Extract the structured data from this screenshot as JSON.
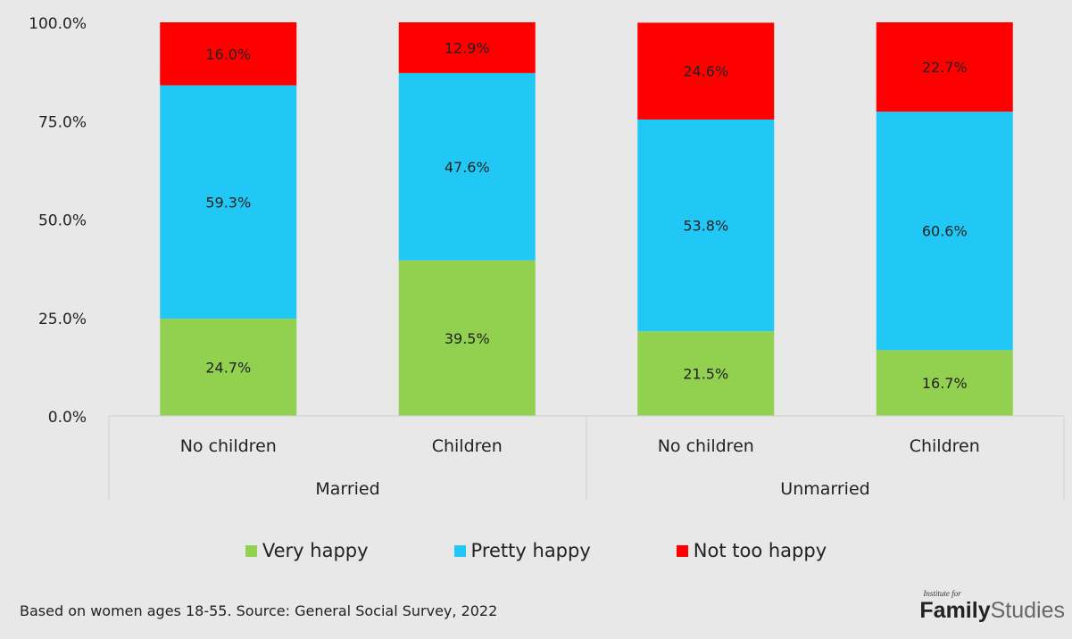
{
  "chart_data": {
    "type": "bar",
    "stacked": true,
    "categories": [
      "No children",
      "Children",
      "No children",
      "Children"
    ],
    "groups": [
      {
        "label": "Married",
        "categories": [
          "No children",
          "Children"
        ]
      },
      {
        "label": "Unmarried",
        "categories": [
          "No children",
          "Children"
        ]
      }
    ],
    "series": [
      {
        "name": "Very happy",
        "values": [
          24.7,
          39.5,
          21.5,
          16.7
        ],
        "labels": [
          "24.7%",
          "39.5%",
          "21.5%",
          "16.7%"
        ],
        "color": "#92d050"
      },
      {
        "name": "Pretty happy",
        "values": [
          59.3,
          47.6,
          53.8,
          60.6
        ],
        "labels": [
          "59.3%",
          "47.6%",
          "53.8%",
          "60.6%"
        ],
        "color": "#22c8f5"
      },
      {
        "name": "Not too happy",
        "values": [
          16.0,
          12.9,
          24.6,
          22.7
        ],
        "labels": [
          "16.0%",
          "12.9%",
          "24.6%",
          "22.7%"
        ],
        "color": "#ff0000"
      }
    ],
    "yticks": [
      "0.0%",
      "25.0%",
      "50.0%",
      "75.0%",
      "100.0%"
    ],
    "ylim": [
      0,
      100
    ],
    "grid": false,
    "legend_position": "bottom"
  },
  "legend": [
    {
      "label": "Very happy",
      "color": "#92d050"
    },
    {
      "label": "Pretty happy",
      "color": "#22c8f5"
    },
    {
      "label": "Not too happy",
      "color": "#ff0000"
    }
  ],
  "footer": {
    "note": "Based on women ages 18-55. Source: General Social Survey, 2022",
    "logo_small": "Institute for",
    "logo_bold": "Family",
    "logo_light": "Studies"
  }
}
